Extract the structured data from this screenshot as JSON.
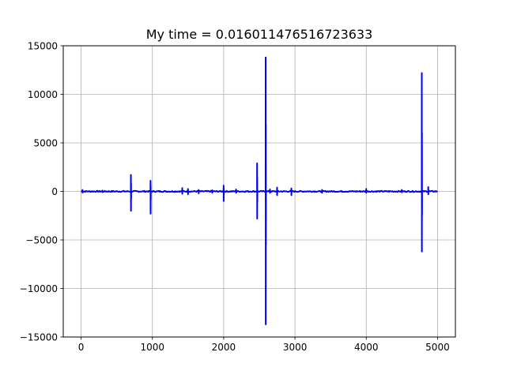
{
  "chart_data": {
    "type": "line",
    "title": "My time = 0.016011476516723633",
    "xlabel": "",
    "ylabel": "",
    "xlim": [
      -250,
      5250
    ],
    "ylim": [
      -15000,
      15000
    ],
    "grid": true,
    "x_ticks": [
      0,
      1000,
      2000,
      3000,
      4000,
      5000
    ],
    "x_tick_labels": [
      "0",
      "1000",
      "2000",
      "3000",
      "4000",
      "5000"
    ],
    "y_ticks": [
      15000,
      10000,
      5000,
      0,
      -5000,
      -10000,
      -15000
    ],
    "y_tick_labels": [
      "15000",
      "10000",
      "5000",
      "0",
      "−5000",
      "−10000",
      "−15000"
    ],
    "series": [
      {
        "color": "#0000ff",
        "x_range": [
          0,
          5000
        ],
        "baseline_noise": 60,
        "spikes": [
          {
            "x": 20,
            "max": 150,
            "min": -120
          },
          {
            "x": 300,
            "max": 90,
            "min": -80
          },
          {
            "x": 700,
            "max": 1700,
            "min": -2000
          },
          {
            "x": 975,
            "max": 1100,
            "min": -2300
          },
          {
            "x": 1420,
            "max": 350,
            "min": -250
          },
          {
            "x": 1500,
            "max": 250,
            "min": -300
          },
          {
            "x": 1650,
            "max": 150,
            "min": -200
          },
          {
            "x": 1840,
            "max": 120,
            "min": -150
          },
          {
            "x": 2000,
            "max": 600,
            "min": -1000
          },
          {
            "x": 2175,
            "max": 200,
            "min": -150
          },
          {
            "x": 2470,
            "max": 2900,
            "min": -2800
          },
          {
            "x": 2590,
            "max": 13800,
            "min": -13700
          },
          {
            "x": 2650,
            "max": 200,
            "min": -150
          },
          {
            "x": 2750,
            "max": 400,
            "min": -400
          },
          {
            "x": 2950,
            "max": 300,
            "min": -400
          },
          {
            "x": 3380,
            "max": 150,
            "min": -150
          },
          {
            "x": 4000,
            "max": 250,
            "min": -150
          },
          {
            "x": 4500,
            "max": 150,
            "min": -100
          },
          {
            "x": 4780,
            "max": 12200,
            "min": -6200
          },
          {
            "x": 4870,
            "max": 450,
            "min": -300
          }
        ]
      }
    ]
  }
}
